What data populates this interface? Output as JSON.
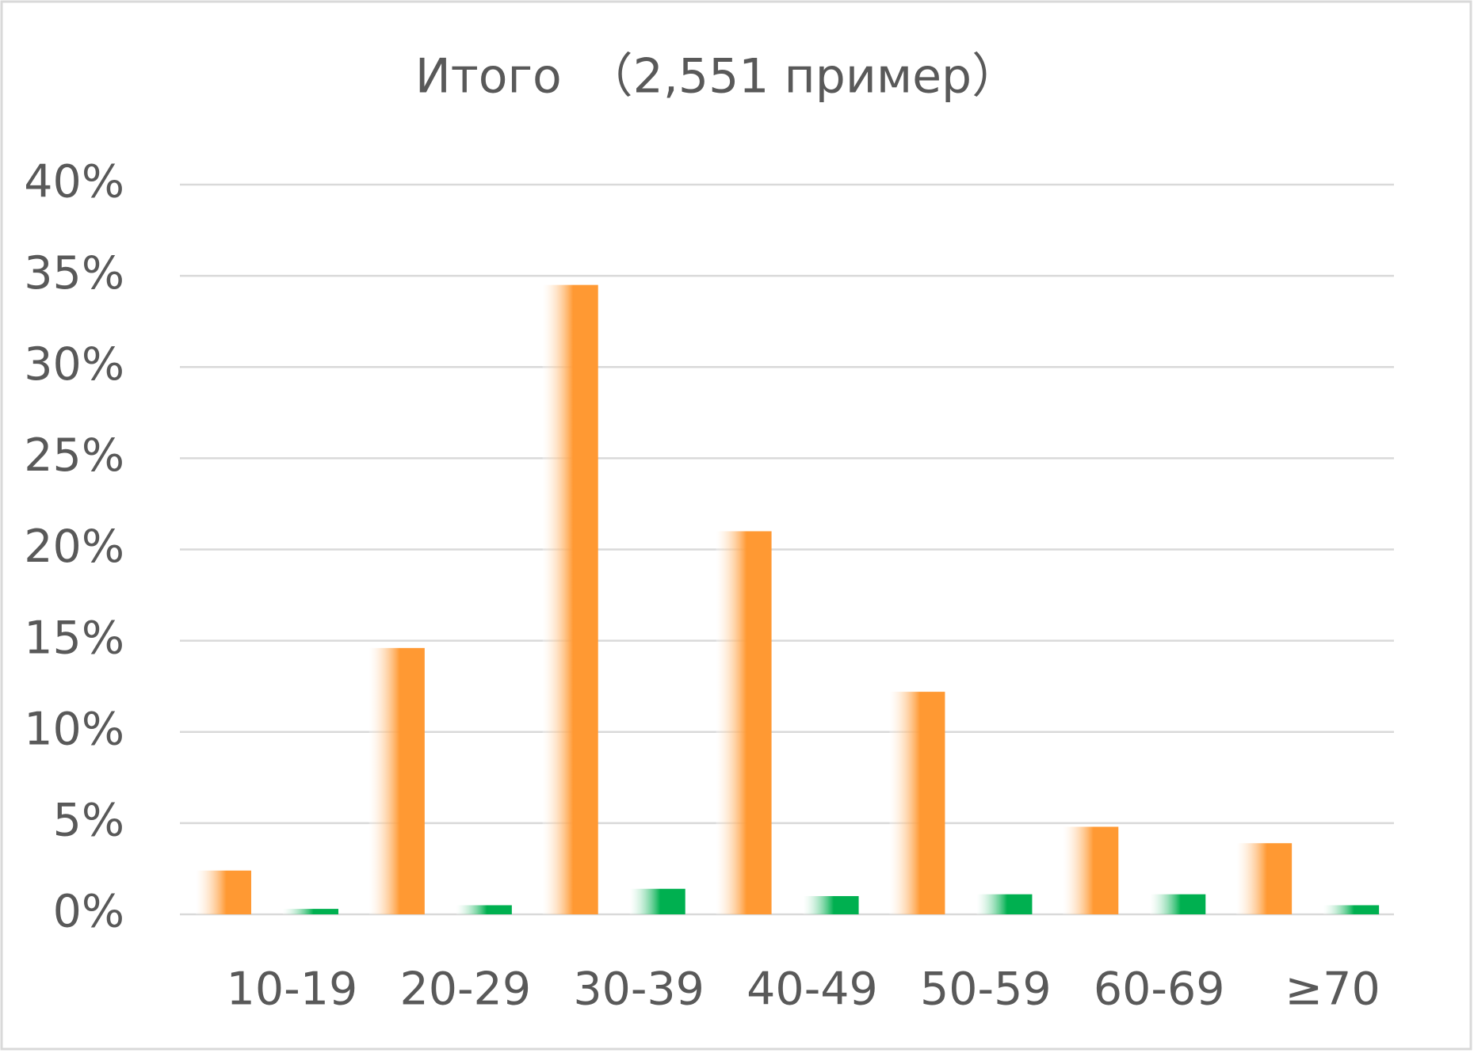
{
  "chart_data": {
    "type": "bar",
    "title": "Итого　（2,551 пример）",
    "categories": [
      "10-19",
      "20-29",
      "30-39",
      "40-49",
      "50-59",
      "60-69",
      "≥70"
    ],
    "series": [
      {
        "color": "#ff9933",
        "values": [
          2.4,
          14.6,
          34.5,
          21.0,
          12.2,
          4.8,
          3.9
        ]
      },
      {
        "color": "#00b050",
        "values": [
          0.3,
          0.5,
          1.4,
          1.0,
          1.1,
          1.1,
          0.5
        ]
      }
    ],
    "ylim": [
      0,
      40
    ],
    "yticks": [
      {
        "value": 0,
        "label": "0%"
      },
      {
        "value": 5,
        "label": "5%"
      },
      {
        "value": 10,
        "label": "10%"
      },
      {
        "value": 15,
        "label": "15%"
      },
      {
        "value": 20,
        "label": "20%"
      },
      {
        "value": 25,
        "label": "25%"
      },
      {
        "value": 30,
        "label": "30%"
      },
      {
        "value": 35,
        "label": "35%"
      },
      {
        "value": 40,
        "label": "40%"
      }
    ],
    "grid": true
  }
}
